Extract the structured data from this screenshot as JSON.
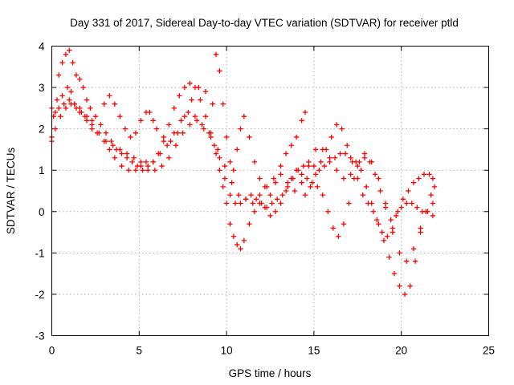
{
  "chart_data": {
    "type": "scatter",
    "title": "Day 331 of 2017, Sidereal Day-to-day VTEC variation (SDTVAR) for receiver ptld",
    "xlabel": "GPS time / hours",
    "ylabel": "SDTVAR / TECUs",
    "xlim": [
      0,
      25
    ],
    "ylim": [
      -3,
      4
    ],
    "xticks": [
      "0",
      "5",
      "10",
      "15",
      "20",
      "25"
    ],
    "yticks": [
      "-3",
      "-2",
      "-1",
      "0",
      "1",
      "2",
      "3",
      "4"
    ],
    "grid": true,
    "marker": "plus",
    "color": "#ff0000",
    "series": [
      {
        "x": [
          0.0,
          0.3,
          0.6,
          0.9,
          1.1,
          1.3,
          1.6,
          2.0,
          2.3,
          2.6,
          3.0,
          3.3,
          3.6,
          4.0,
          4.4,
          4.8,
          5.1,
          5.4,
          5.8,
          6.2,
          6.6,
          7.0,
          7.4,
          7.8,
          8.2,
          8.6,
          9.0,
          9.3,
          9.6,
          9.9,
          10.2,
          10.5,
          10.8,
          11.1,
          11.4,
          11.7,
          12.0,
          12.3,
          12.6,
          12.9,
          13.2,
          13.5,
          13.8,
          14.1,
          14.4,
          14.7,
          15.0,
          15.3,
          15.6,
          15.9,
          16.2,
          16.5,
          16.8,
          17.1,
          17.4,
          17.7,
          18.0,
          18.3,
          18.6,
          18.9,
          19.2,
          19.5,
          19.8,
          20.1,
          20.4,
          20.7,
          21.0,
          21.3,
          21.6,
          21.8
        ],
        "y": [
          2.5,
          2.7,
          2.8,
          3.0,
          2.9,
          2.6,
          2.4,
          2.2,
          2.0,
          1.9,
          1.7,
          1.5,
          1.3,
          1.1,
          1.0,
          1.0,
          1.1,
          1.2,
          1.2,
          1.4,
          1.6,
          1.9,
          2.2,
          2.4,
          2.3,
          2.1,
          1.9,
          1.6,
          1.3,
          0.8,
          0.4,
          0.2,
          0.2,
          0.3,
          0.4,
          0.3,
          0.2,
          0.1,
          0.2,
          0.3,
          0.4,
          0.6,
          0.8,
          1.0,
          1.1,
          1.2,
          1.1,
          1.0,
          1.1,
          1.2,
          1.3,
          1.4,
          1.4,
          1.3,
          1.2,
          1.0,
          0.6,
          0.2,
          -0.2,
          -0.5,
          -0.6,
          -0.5,
          0.0,
          0.3,
          0.5,
          0.7,
          0.8,
          0.9,
          0.9,
          0.8
        ]
      },
      {
        "x": [
          0.0,
          0.2,
          0.4,
          0.6,
          0.8,
          1.0,
          1.2,
          1.4,
          1.6,
          1.8,
          2.0,
          2.2,
          2.5,
          2.8,
          3.1,
          3.4,
          3.7,
          4.0,
          4.3,
          4.6,
          4.9,
          5.2,
          5.5,
          5.8,
          6.1,
          6.4,
          6.7,
          7.0,
          7.3,
          7.6,
          7.9,
          8.2,
          8.5,
          8.8,
          9.1,
          9.4,
          9.6,
          9.8,
          10.0,
          10.2,
          10.4,
          10.6,
          10.8,
          11.0,
          11.3,
          11.6,
          11.9,
          12.2,
          12.5,
          12.8,
          13.1,
          13.4,
          13.7,
          14.0,
          14.3,
          14.6,
          14.9,
          15.2,
          15.5,
          15.8,
          16.1,
          16.4,
          16.7,
          17.0,
          17.3,
          17.6,
          17.9,
          18.2,
          18.5,
          18.8,
          19.1,
          19.4,
          19.7,
          20.0,
          20.3,
          20.6,
          20.9,
          21.2,
          21.5,
          21.8
        ],
        "y": [
          1.8,
          2.4,
          3.3,
          3.6,
          3.8,
          3.9,
          3.6,
          3.3,
          3.2,
          3.0,
          2.7,
          2.5,
          2.3,
          2.1,
          1.9,
          1.7,
          1.5,
          1.4,
          1.3,
          1.2,
          1.1,
          1.0,
          1.0,
          1.2,
          1.4,
          1.7,
          2.1,
          2.5,
          2.8,
          3.0,
          3.1,
          3.0,
          2.7,
          2.3,
          1.9,
          1.4,
          1.0,
          0.6,
          0.2,
          -0.3,
          -0.6,
          -0.8,
          -0.9,
          -0.7,
          -0.3,
          0.0,
          0.2,
          0.1,
          -0.1,
          0.0,
          0.2,
          0.5,
          0.8,
          1.0,
          0.9,
          0.8,
          0.7,
          0.6,
          0.4,
          0.0,
          -0.4,
          -0.6,
          -0.3,
          0.2,
          0.8,
          1.2,
          1.4,
          1.2,
          0.9,
          0.5,
          0.1,
          -0.2,
          -0.1,
          0.1,
          0.2,
          0.2,
          0.1,
          0.0,
          0.0,
          -0.1
        ]
      },
      {
        "x": [
          0.1,
          0.4,
          0.7,
          1.0,
          1.3,
          1.6,
          1.9,
          2.3,
          2.7,
          3.1,
          3.5,
          3.9,
          4.3,
          4.7,
          5.1,
          5.5,
          5.9,
          6.3,
          6.7,
          7.1,
          7.5,
          7.9,
          8.3,
          8.7,
          9.1,
          9.5,
          9.9,
          10.3,
          10.7,
          11.1,
          11.5,
          11.9,
          12.3,
          12.7,
          13.1,
          13.5,
          13.9,
          14.3,
          14.7,
          15.1,
          15.5,
          15.9,
          16.3,
          16.7,
          17.1,
          17.5,
          17.9,
          18.3,
          18.7,
          19.1,
          19.5,
          19.9,
          20.3,
          20.7,
          21.1,
          21.5,
          21.8
        ],
        "y": [
          2.3,
          2.5,
          2.6,
          2.7,
          2.6,
          2.5,
          2.3,
          2.1,
          1.9,
          1.7,
          1.6,
          1.5,
          1.4,
          1.3,
          1.2,
          1.1,
          1.0,
          1.1,
          1.3,
          1.6,
          1.9,
          2.1,
          2.2,
          2.0,
          1.8,
          1.5,
          1.1,
          0.7,
          0.4,
          0.3,
          0.2,
          0.4,
          0.6,
          0.8,
          0.9,
          0.7,
          0.5,
          0.7,
          1.1,
          1.5,
          1.5,
          1.3,
          1.0,
          0.8,
          0.9,
          1.1,
          1.3,
          1.2,
          0.8,
          0.2,
          -0.4,
          -1.0,
          -1.2,
          -0.9,
          -0.4,
          0.0,
          0.2
        ]
      },
      {
        "x": [
          0.0,
          0.2,
          0.5,
          0.8,
          1.1,
          1.4,
          1.7,
          2.0,
          2.3,
          3.0,
          3.3,
          3.6,
          3.9,
          4.2,
          4.5,
          4.8,
          5.1,
          5.4,
          5.6,
          5.8,
          6.0,
          6.4,
          6.8,
          7.2,
          7.6,
          8.0,
          8.4,
          8.8,
          9.2,
          9.4,
          9.6,
          9.8,
          10.0,
          10.2,
          10.4,
          10.6,
          10.8,
          11.0,
          11.3,
          11.6,
          11.9,
          12.2,
          12.5,
          12.8,
          13.1,
          13.4,
          13.7,
          14.0,
          14.3,
          14.5
        ],
        "y": [
          1.7,
          2.0,
          2.3,
          2.5,
          2.6,
          2.5,
          2.4,
          2.3,
          2.2,
          2.6,
          2.8,
          2.6,
          2.3,
          2.0,
          1.8,
          1.9,
          2.2,
          2.4,
          2.4,
          2.2,
          2.0,
          1.8,
          1.7,
          1.9,
          2.3,
          2.7,
          3.0,
          2.9,
          2.6,
          3.8,
          3.4,
          2.6,
          1.8,
          1.2,
          1.0,
          1.5,
          2.0,
          2.3,
          1.8,
          1.2,
          0.8,
          0.6,
          0.4,
          0.7,
          1.1,
          1.4,
          1.6,
          1.8,
          2.2,
          2.4
        ]
      },
      {
        "x": [
          14.5,
          14.8,
          15.1,
          15.4,
          15.7,
          16.0,
          16.3,
          16.6,
          16.9,
          17.2,
          17.5,
          17.8,
          18.1,
          18.4,
          18.7,
          19.0,
          19.3,
          19.6,
          19.9,
          20.2,
          20.5,
          20.8,
          21.1,
          21.4,
          21.7,
          21.9
        ],
        "y": [
          0.4,
          0.6,
          0.9,
          1.2,
          1.5,
          1.8,
          2.1,
          2.0,
          1.6,
          1.2,
          0.8,
          0.4,
          0.2,
          0.0,
          -0.3,
          -0.7,
          -1.1,
          -1.5,
          -1.8,
          -2.0,
          -1.8,
          -1.2,
          -0.5,
          0.0,
          0.4,
          0.6
        ]
      }
    ]
  }
}
